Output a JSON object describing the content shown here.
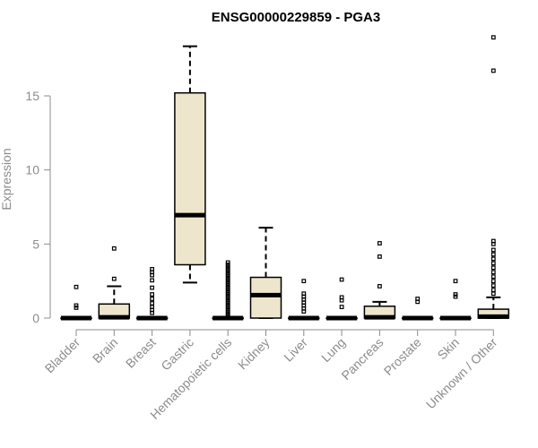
{
  "chart_data": {
    "type": "boxplot",
    "title": "ENSG00000229859 - PGA3",
    "ylabel": "Expression",
    "xlabel": "",
    "ylim": [
      0,
      20
    ],
    "yticks": [
      0,
      5,
      10,
      15
    ],
    "grid": false,
    "legend": "none",
    "box_fill": "#ede6cd",
    "stroke_color": "#000000",
    "categories": [
      "Bladder",
      "Brain",
      "Breast",
      "Gastric",
      "Hematopoietic cells",
      "Kidney",
      "Liver",
      "Lung",
      "Pancreas",
      "Prostate",
      "Skin",
      "Unknown / Other"
    ],
    "boxes": [
      {
        "category": "Bladder",
        "whisker_low": 0,
        "q1": 0,
        "median": 0,
        "q3": 0,
        "whisker_high": 0,
        "outliers": [
          2.1,
          0.85,
          0.7
        ]
      },
      {
        "category": "Brain",
        "whisker_low": 0,
        "q1": 0,
        "median": 0.05,
        "q3": 0.95,
        "whisker_high": 2.15,
        "outliers": [
          4.7,
          2.65
        ]
      },
      {
        "category": "Breast",
        "whisker_low": 0,
        "q1": 0,
        "median": 0,
        "q3": 0,
        "whisker_high": 0,
        "outliers": [
          3.3,
          3.1,
          2.9,
          2.55,
          2.05,
          1.6,
          1.3,
          1.0,
          0.75,
          0.55,
          0.35
        ]
      },
      {
        "category": "Gastric",
        "whisker_low": 2.4,
        "q1": 3.6,
        "median": 6.95,
        "q3": 15.2,
        "whisker_high": 18.35,
        "outliers": []
      },
      {
        "category": "Hematopoietic cells",
        "whisker_low": 0,
        "q1": 0,
        "median": 0,
        "q3": 0,
        "whisker_high": 0,
        "outliers": [
          3.75,
          3.6,
          3.45,
          3.3,
          3.15,
          3.0,
          2.85,
          2.7,
          2.55,
          2.4,
          2.25,
          2.1,
          1.95,
          1.8,
          1.65,
          1.5,
          1.35,
          1.2,
          1.05,
          0.9,
          0.75,
          0.6,
          0.45,
          0.3,
          0.15
        ]
      },
      {
        "category": "Kidney",
        "whisker_low": 0,
        "q1": 0,
        "median": 1.55,
        "q3": 2.75,
        "whisker_high": 6.1,
        "outliers": []
      },
      {
        "category": "Liver",
        "whisker_low": 0,
        "q1": 0,
        "median": 0,
        "q3": 0,
        "whisker_high": 0,
        "outliers": [
          2.5,
          1.65,
          1.45,
          1.25,
          1.05,
          0.85,
          0.65,
          0.45
        ]
      },
      {
        "category": "Lung",
        "whisker_low": 0,
        "q1": 0,
        "median": 0,
        "q3": 0,
        "whisker_high": 0,
        "outliers": [
          2.6,
          1.4,
          1.2,
          0.75
        ]
      },
      {
        "category": "Pancreas",
        "whisker_low": 0,
        "q1": 0,
        "median": 0.05,
        "q3": 0.8,
        "whisker_high": 1.1,
        "outliers": [
          5.05,
          4.15,
          2.15
        ]
      },
      {
        "category": "Prostate",
        "whisker_low": 0,
        "q1": 0,
        "median": 0,
        "q3": 0,
        "whisker_high": 0,
        "outliers": [
          1.3,
          1.1
        ]
      },
      {
        "category": "Skin",
        "whisker_low": 0,
        "q1": 0,
        "median": 0,
        "q3": 0,
        "whisker_high": 0,
        "outliers": [
          2.5,
          1.6,
          1.45
        ]
      },
      {
        "category": "Unknown / Other",
        "whisker_low": 0,
        "q1": 0,
        "median": 0.1,
        "q3": 0.6,
        "whisker_high": 1.4,
        "outliers": [
          18.95,
          16.7,
          5.2,
          5.0,
          4.6,
          4.3,
          4.0,
          3.7,
          3.4,
          3.1,
          2.8,
          2.5,
          2.2,
          1.9,
          1.65
        ]
      }
    ]
  }
}
